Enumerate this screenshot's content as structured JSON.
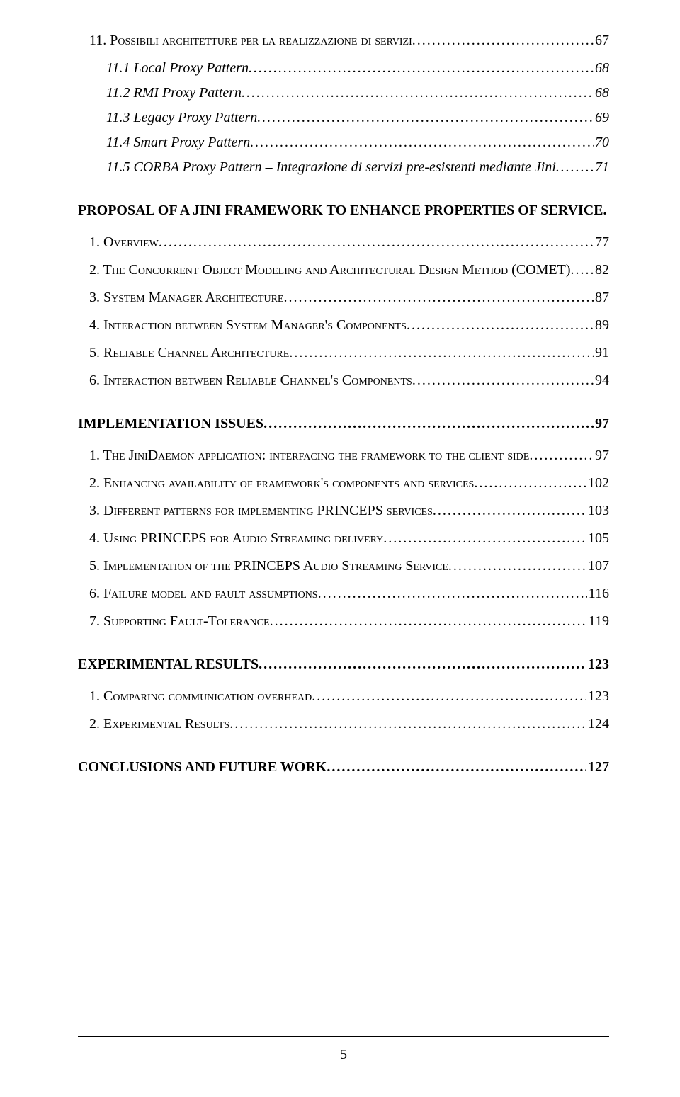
{
  "entries": [
    {
      "level": "lvl2",
      "label": "11. Possibili architetture per la realizzazione di servizi",
      "page": "67"
    },
    {
      "level": "lvl3",
      "label": "11.1 Local Proxy Pattern",
      "page": "68"
    },
    {
      "level": "lvl3",
      "label": "11.2 RMI Proxy Pattern",
      "page": "68"
    },
    {
      "level": "lvl3",
      "label": "11.3 Legacy Proxy Pattern",
      "page": "69"
    },
    {
      "level": "lvl3",
      "label": "11.4 Smart Proxy Pattern",
      "page": "70"
    },
    {
      "level": "lvl3",
      "label": "11.5 CORBA Proxy Pattern – Integrazione di servizi pre-esistenti mediante Jini",
      "page": "71"
    },
    {
      "level": "lvl1",
      "label": "PROPOSAL OF A JINI FRAMEWORK TO ENHANCE PROPERTIES OF SERVICE",
      "page": "77"
    },
    {
      "level": "lvl2",
      "label": "1. Overview",
      "page": "77"
    },
    {
      "level": "lvl2",
      "label": "2. The Concurrent Object Modeling and Architectural Design Method (COMET)",
      "page": "82"
    },
    {
      "level": "lvl2",
      "label": "3. System Manager Architecture",
      "page": "87"
    },
    {
      "level": "lvl2",
      "label": "4. Interaction between System Manager's Components",
      "page": "89"
    },
    {
      "level": "lvl2",
      "label": "5. Reliable Channel Architecture",
      "page": "91"
    },
    {
      "level": "lvl2",
      "label": "6. Interaction between Reliable Channel's Components",
      "page": "94"
    },
    {
      "level": "lvl1",
      "label": "IMPLEMENTATION ISSUES",
      "page": "97"
    },
    {
      "level": "lvl2",
      "label": "1. The JiniDaemon application: interfacing  the framework to the client side",
      "page": "97"
    },
    {
      "level": "lvl2",
      "label": "2. Enhancing availability of framework's components and services",
      "page": "102"
    },
    {
      "level": "lvl2",
      "label": "3. Different patterns for implementing PRINCEPS services",
      "page": "103"
    },
    {
      "level": "lvl2",
      "label": "4. Using PRINCEPS for Audio Streaming delivery",
      "page": "105"
    },
    {
      "level": "lvl2",
      "label": "5. Implementation of the PRINCEPS Audio Streaming Service",
      "page": "107"
    },
    {
      "level": "lvl2",
      "label": "6. Failure model and fault assumptions",
      "page": "116"
    },
    {
      "level": "lvl2",
      "label": "7. Supporting  Fault-Tolerance",
      "page": "119"
    },
    {
      "level": "lvl1",
      "label": "EXPERIMENTAL RESULTS",
      "page": "123"
    },
    {
      "level": "lvl2",
      "label": "1. Comparing communication overhead",
      "page": "123"
    },
    {
      "level": "lvl2",
      "label": "2. Experimental Results",
      "page": "124"
    },
    {
      "level": "lvl1",
      "label": "CONCLUSIONS AND FUTURE WORK",
      "page": "127"
    }
  ],
  "pageNumber": "5"
}
